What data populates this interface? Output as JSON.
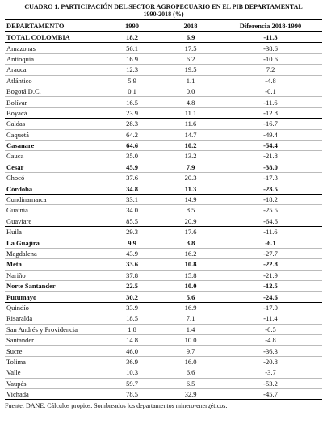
{
  "header": {
    "title": "CUADRO 1. PARTICIPACIÓN DEL SECTOR AGROPECUARIO EN EL PIB DEPARTAMENTAL",
    "subtitle": "1990-2018 (%)"
  },
  "table": {
    "columns": [
      "DEPARTAMENTO",
      "1990",
      "2018",
      "Diferencia 2018-1990"
    ],
    "rows": [
      {
        "cells": [
          "TOTAL COLOMBIA",
          "18.2",
          "6.9",
          "-11.3"
        ],
        "bold": true
      },
      {
        "cells": [
          "Amazonas",
          "56.1",
          "17.5",
          "-38.6"
        ]
      },
      {
        "cells": [
          "Antioquia",
          "16.9",
          "6.2",
          "-10.6"
        ]
      },
      {
        "cells": [
          "Arauca",
          "12.3",
          "19.5",
          "7.2"
        ]
      },
      {
        "cells": [
          "Atlántico",
          "5.9",
          "1.1",
          "-4.8"
        ]
      },
      {
        "cells": [
          "Bogotá D.C.",
          "0.1",
          "0.0",
          "-0.1"
        ]
      },
      {
        "cells": [
          "Bolívar",
          "16.5",
          "4.8",
          "-11.6"
        ]
      },
      {
        "cells": [
          "Boyacá",
          "23.9",
          "11.1",
          "-12.8"
        ]
      },
      {
        "cells": [
          "Caldas",
          "28.3",
          "11.6",
          "-16.7"
        ]
      },
      {
        "cells": [
          "Caquetá",
          "64.2",
          "14.7",
          "-49.4"
        ]
      },
      {
        "cells": [
          "Casanare",
          "64.6",
          "10.2",
          "-54.4"
        ],
        "bold": true
      },
      {
        "cells": [
          "Cauca",
          "35.0",
          "13.2",
          "-21.8"
        ]
      },
      {
        "cells": [
          "Cesar",
          "45.9",
          "7.9",
          "-38.0"
        ],
        "bold": true
      },
      {
        "cells": [
          "Chocó",
          "37.6",
          "20.3",
          "-17.3"
        ]
      },
      {
        "cells": [
          "Córdoba",
          "34.8",
          "11.3",
          "-23.5"
        ],
        "bold": true
      },
      {
        "cells": [
          "Cundinamarca",
          "33.1",
          "14.9",
          "-18.2"
        ]
      },
      {
        "cells": [
          "Guainía",
          "34.0",
          "8.5",
          "-25.5"
        ]
      },
      {
        "cells": [
          "Guaviare",
          "85.5",
          "20.9",
          "-64.6"
        ]
      },
      {
        "cells": [
          "Huila",
          "29.3",
          "17.6",
          "-11.6"
        ]
      },
      {
        "cells": [
          "La Guajira",
          "9.9",
          "3.8",
          "-6.1"
        ],
        "bold": true
      },
      {
        "cells": [
          "Magdalena",
          "43.9",
          "16.2",
          "-27.7"
        ]
      },
      {
        "cells": [
          "Meta",
          "33.6",
          "10.8",
          "-22.8"
        ],
        "bold": true
      },
      {
        "cells": [
          "Nariño",
          "37.8",
          "15.8",
          "-21.9"
        ]
      },
      {
        "cells": [
          "Norte Santander",
          "22.5",
          "10.0",
          "-12.5"
        ],
        "bold": true
      },
      {
        "cells": [
          "Putumayo",
          "30.2",
          "5.6",
          "-24.6"
        ],
        "bold": true
      },
      {
        "cells": [
          "Quindío",
          "33.9",
          "16.9",
          "-17.0"
        ]
      },
      {
        "cells": [
          "Risaralda",
          "18.5",
          "7.1",
          "-11.4"
        ]
      },
      {
        "cells": [
          "San Andrés y Providencia",
          "1.8",
          "1.4",
          "-0.5"
        ]
      },
      {
        "cells": [
          "Santander",
          "14.8",
          "10.0",
          "-4.8"
        ]
      },
      {
        "cells": [
          "Sucre",
          "46.0",
          "9.7",
          "-36.3"
        ]
      },
      {
        "cells": [
          "Tolima",
          "36.9",
          "16.0",
          "-20.8"
        ]
      },
      {
        "cells": [
          "Valle",
          "10.3",
          "6.6",
          "-3.7"
        ]
      },
      {
        "cells": [
          "Vaupés",
          "59.7",
          "6.5",
          "-53.2"
        ]
      },
      {
        "cells": [
          "Vichada",
          "78.5",
          "32.9",
          "-45.7"
        ]
      }
    ]
  },
  "footer": {
    "note": "Fuente: DANE. Cálculos propios. Sombreados los departamentos minero-energéticos."
  }
}
